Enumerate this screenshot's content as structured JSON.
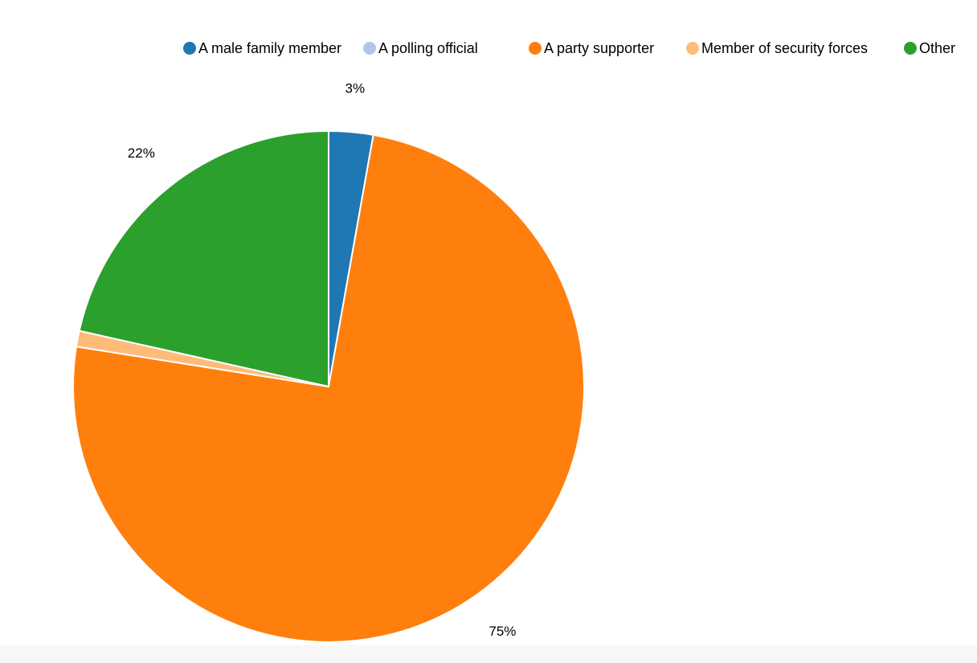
{
  "chart_data": {
    "type": "pie",
    "title": "",
    "slices": [
      {
        "label": "A male family member",
        "value": 2.8,
        "display": "3%",
        "color": "#1f77b4"
      },
      {
        "label": "A party supporter",
        "value": 74.7,
        "display": "75%",
        "color": "#ff7f0e"
      },
      {
        "label": "Member of security forces",
        "value": 1.0,
        "display": "",
        "color": "#ffbb78"
      },
      {
        "label": "Other",
        "value": 21.5,
        "display": "22%",
        "color": "#2ca02c"
      }
    ],
    "legend": {
      "placement": "top",
      "entries": [
        {
          "label": "A male family member",
          "color": "#1f77b4"
        },
        {
          "label": "A polling official",
          "color": "#aec7e8"
        },
        {
          "label": "A party supporter",
          "color": "#ff7f0e"
        },
        {
          "label": "Member of security forces",
          "color": "#ffbb78"
        },
        {
          "label": "Other",
          "color": "#2ca02c"
        }
      ]
    }
  }
}
